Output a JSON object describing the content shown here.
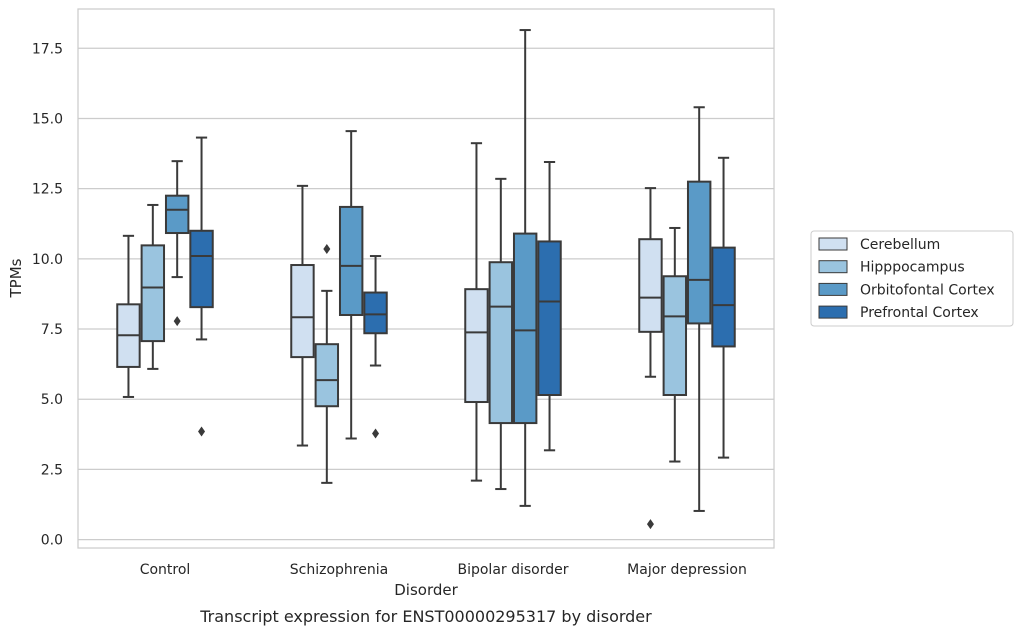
{
  "chart_data": {
    "type": "boxplot",
    "title": "",
    "caption": "Transcript expression for ENST00000295317 by disorder",
    "xlabel": "Disorder",
    "ylabel": "TPMs",
    "ylim": [
      -0.3,
      18.9
    ],
    "yticks": [
      0.0,
      2.5,
      5.0,
      7.5,
      10.0,
      12.5,
      15.0,
      17.5
    ],
    "ytick_labels": [
      "0.0",
      "2.5",
      "5.0",
      "7.5",
      "10.0",
      "12.5",
      "15.0",
      "17.5"
    ],
    "grid": "horizontal",
    "legend_position": "right",
    "categories": [
      "Control",
      "Schizophrenia",
      "Bipolar disorder",
      "Major depression"
    ],
    "series": [
      {
        "name": "Cerebellum",
        "color": "#d0e0f1",
        "boxes": [
          {
            "whisker_low": 5.08,
            "q1": 6.15,
            "median": 7.28,
            "q3": 8.38,
            "whisker_high": 10.82,
            "outliers": []
          },
          {
            "whisker_low": 3.35,
            "q1": 6.5,
            "median": 7.92,
            "q3": 9.78,
            "whisker_high": 12.6,
            "outliers": []
          },
          {
            "whisker_low": 2.1,
            "q1": 4.9,
            "median": 7.38,
            "q3": 8.92,
            "whisker_high": 14.12,
            "outliers": []
          },
          {
            "whisker_low": 5.8,
            "q1": 7.4,
            "median": 8.62,
            "q3": 10.7,
            "whisker_high": 12.52,
            "outliers": [
              0.55
            ]
          }
        ]
      },
      {
        "name": "Hipppocampus",
        "color": "#9ac4df",
        "boxes": [
          {
            "whisker_low": 6.08,
            "q1": 7.07,
            "median": 8.98,
            "q3": 10.48,
            "whisker_high": 11.92,
            "outliers": []
          },
          {
            "whisker_low": 2.02,
            "q1": 4.75,
            "median": 5.68,
            "q3": 6.96,
            "whisker_high": 8.86,
            "outliers": [
              10.35
            ]
          },
          {
            "whisker_low": 1.8,
            "q1": 4.15,
            "median": 8.3,
            "q3": 9.88,
            "whisker_high": 12.85,
            "outliers": []
          },
          {
            "whisker_low": 2.78,
            "q1": 5.15,
            "median": 7.95,
            "q3": 9.38,
            "whisker_high": 11.1,
            "outliers": []
          }
        ]
      },
      {
        "name": "Orbitofontal Cortex",
        "color": "#5a9ac7",
        "boxes": [
          {
            "whisker_low": 9.35,
            "q1": 10.92,
            "median": 11.75,
            "q3": 12.25,
            "whisker_high": 13.48,
            "outliers": [
              7.78
            ]
          },
          {
            "whisker_low": 3.6,
            "q1": 8.0,
            "median": 9.75,
            "q3": 11.85,
            "whisker_high": 14.55,
            "outliers": []
          },
          {
            "whisker_low": 1.2,
            "q1": 4.15,
            "median": 7.45,
            "q3": 10.9,
            "whisker_high": 18.15,
            "outliers": []
          },
          {
            "whisker_low": 1.02,
            "q1": 7.7,
            "median": 9.25,
            "q3": 12.75,
            "whisker_high": 15.4,
            "outliers": []
          }
        ]
      },
      {
        "name": "Prefrontal Cortex",
        "color": "#2c6eaf",
        "boxes": [
          {
            "whisker_low": 7.13,
            "q1": 8.28,
            "median": 10.1,
            "q3": 11.0,
            "whisker_high": 14.32,
            "outliers": [
              3.85
            ]
          },
          {
            "whisker_low": 6.2,
            "q1": 7.35,
            "median": 8.02,
            "q3": 8.8,
            "whisker_high": 10.1,
            "outliers": [
              3.78
            ]
          },
          {
            "whisker_low": 3.18,
            "q1": 5.15,
            "median": 8.48,
            "q3": 10.62,
            "whisker_high": 13.45,
            "outliers": []
          },
          {
            "whisker_low": 2.92,
            "q1": 6.88,
            "median": 8.35,
            "q3": 10.4,
            "whisker_high": 13.6,
            "outliers": []
          }
        ]
      }
    ]
  }
}
